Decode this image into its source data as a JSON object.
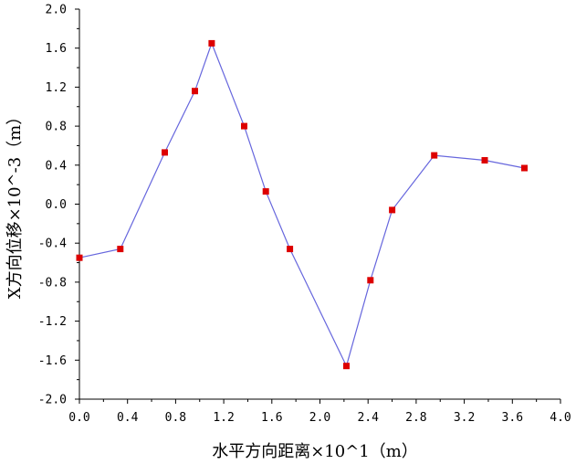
{
  "chart_data": {
    "type": "line",
    "xlabel": "水平方向距离×10^1（m）",
    "ylabel": "X方向位移×10^-3（m）",
    "xlim": [
      0.0,
      4.0
    ],
    "ylim": [
      -2.0,
      2.0
    ],
    "x_ticks": [
      "0.0",
      "0.4",
      "0.8",
      "1.2",
      "1.6",
      "2.0",
      "2.4",
      "2.8",
      "3.2",
      "3.6",
      "4.0"
    ],
    "y_ticks": [
      "2.0",
      "1.6",
      "1.2",
      "0.8",
      "0.4",
      "0.0",
      "-0.4",
      "-0.8",
      "-1.2",
      "-1.6",
      "-2.0"
    ],
    "grid": false,
    "series": [
      {
        "line_color": "#6666dd",
        "marker_color": "#dd0000",
        "marker": "square",
        "x": [
          0.0,
          0.34,
          0.71,
          0.96,
          1.1,
          1.37,
          1.55,
          1.75,
          2.22,
          2.42,
          2.6,
          2.95,
          3.37,
          3.7
        ],
        "y": [
          -0.55,
          -0.46,
          0.53,
          1.16,
          1.65,
          0.8,
          0.13,
          -0.46,
          -1.66,
          -0.78,
          -0.06,
          0.5,
          0.45,
          0.37
        ]
      }
    ]
  }
}
